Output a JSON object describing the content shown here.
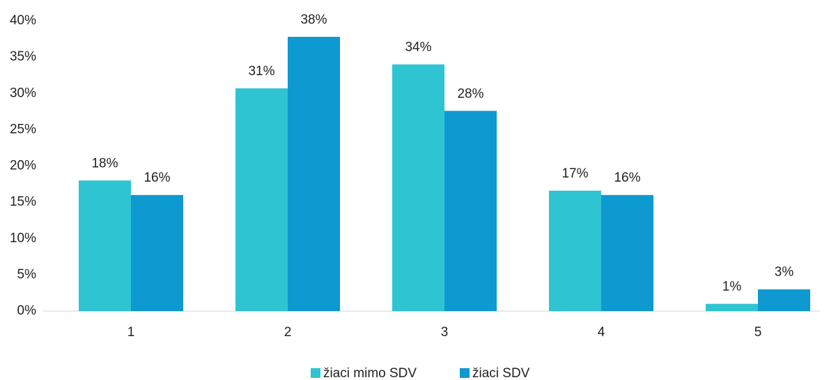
{
  "chart_data": {
    "type": "bar",
    "categories": [
      "1",
      "2",
      "3",
      "4",
      "5"
    ],
    "series": [
      {
        "name": "žiaci mimo SDV",
        "color": "#2ec4d2",
        "values": [
          18.0,
          30.7,
          34.0,
          16.6,
          1.0
        ],
        "value_labels": [
          "18%",
          "31%",
          "34%",
          "17%",
          "1%"
        ]
      },
      {
        "name": "žiaci SDV",
        "color": "#0e99d0",
        "values": [
          16.0,
          37.8,
          27.6,
          16.0,
          3.0
        ],
        "value_labels": [
          "16%",
          "38%",
          "28%",
          "16%",
          "3%"
        ]
      }
    ],
    "ylim": [
      0,
      40
    ],
    "yticks": [
      {
        "value": 0,
        "label": "0%"
      },
      {
        "value": 5,
        "label": "5%"
      },
      {
        "value": 10,
        "label": "10%"
      },
      {
        "value": 15,
        "label": "15%"
      },
      {
        "value": 20,
        "label": "20%"
      },
      {
        "value": 25,
        "label": "25%"
      },
      {
        "value": 30,
        "label": "30%"
      },
      {
        "value": 35,
        "label": "35%"
      },
      {
        "value": 40,
        "label": "40%"
      }
    ],
    "grid": false,
    "legend": "bottom"
  }
}
